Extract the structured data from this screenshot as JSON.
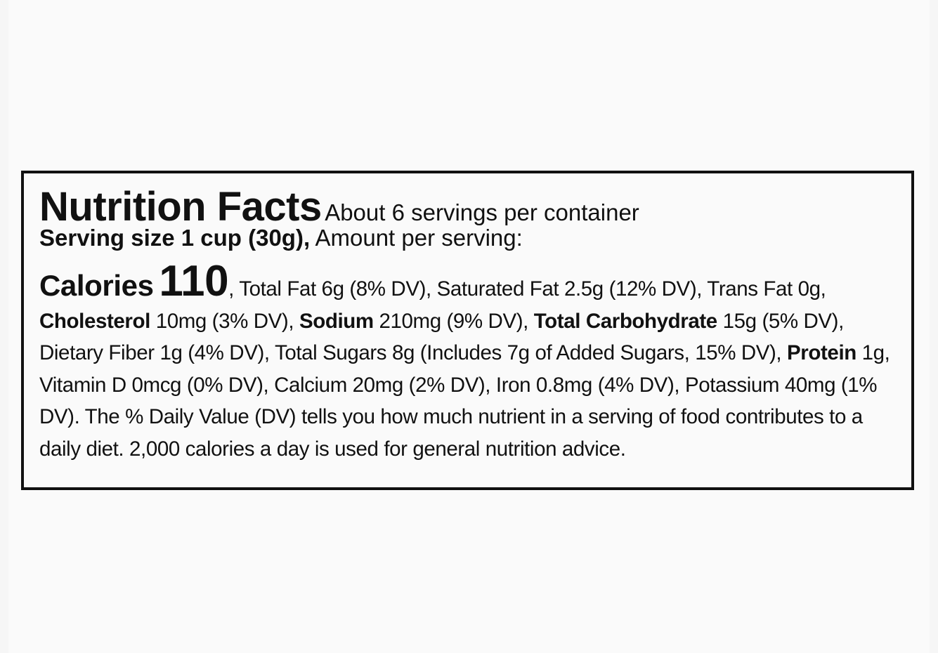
{
  "header": {
    "title": "Nutrition Facts",
    "servings": "About 6 servings per container",
    "serving_size": "Serving size 1 cup (30g),",
    "amount": "Amount per serving:"
  },
  "calories": {
    "label": "Calories",
    "value": "110"
  },
  "body": [
    ", Total Fat 6g (8% DV), Saturated Fat 2.5g (12% DV), Trans Fat 0g,",
    "Cholesterol",
    "10mg (3% DV),",
    "Sodium",
    "210mg (9% DV),",
    "Total Carbohydrate",
    "15g (5% DV), Dietary Fiber 1g (4% DV), Total Sugars 8g (Includes 7g of Added Sugars, 15% DV),",
    "Protein",
    "1g, Vitamin D 0mcg (0% DV), Calcium 20mg (2% DV), Iron 0.8mg (4% DV), Potassium 40mg (1% DV). The % Daily Value (DV) tells you how much nutrient in a serving of food contributes to a daily diet. 2,000 calories a day is used for general nutrition advice."
  ]
}
